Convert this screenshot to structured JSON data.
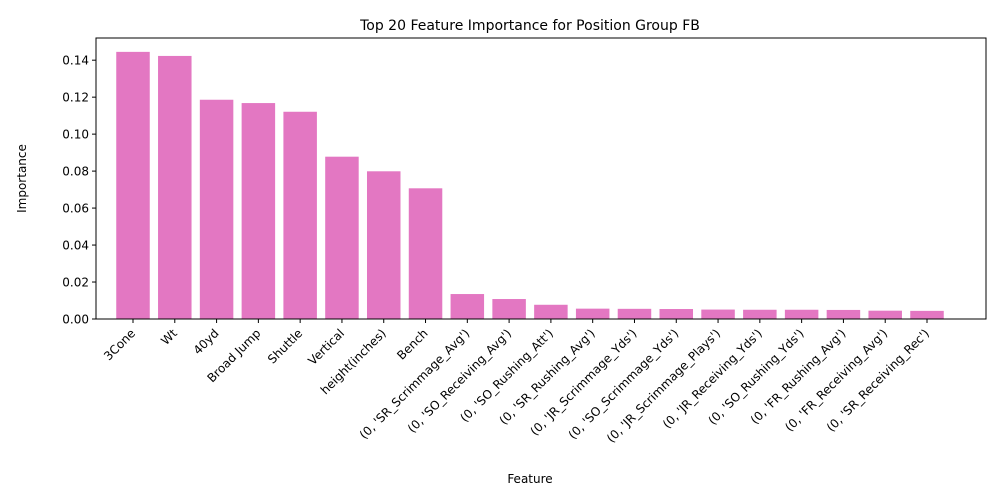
{
  "chart_data": {
    "type": "bar",
    "title": "Top 20 Feature Importance for Position Group FB",
    "xlabel": "Feature",
    "ylabel": "Importance",
    "ylim": [
      0,
      0.152
    ],
    "yticks": [
      "0.00",
      "0.02",
      "0.04",
      "0.06",
      "0.08",
      "0.10",
      "0.12",
      "0.14"
    ],
    "ytick_values": [
      0,
      0.02,
      0.04,
      0.06,
      0.08,
      0.1,
      0.12,
      0.14
    ],
    "grid": false,
    "legend": "none",
    "bar_color": "#e377c2",
    "categories": [
      "3Cone",
      "Wt",
      "40yd",
      "Broad Jump",
      "Shuttle",
      "Vertical",
      "height(inches)",
      "Bench",
      "(0, 'SR_Scrimmage_Avg')",
      "(0, 'SO_Receiving_Avg')",
      "(0, 'SO_Rushing_Att')",
      "(0, 'SR_Rushing_Avg')",
      "(0, 'JR_Scrimmage_Yds')",
      "(0, 'SO_Scrimmage_Yds')",
      "(0, 'JR_Scrimmage_Plays')",
      "(0, 'JR_Receiving_Yds')",
      "(0, 'SO_Rushing_Yds')",
      "(0, 'FR_Rushing_Avg')",
      "(0, 'FR_Receiving_Avg')",
      "(0, 'SR_Receiving_Rec')"
    ],
    "values": [
      0.1445,
      0.1423,
      0.1186,
      0.1168,
      0.1121,
      0.0878,
      0.0799,
      0.0707,
      0.0135,
      0.0108,
      0.0077,
      0.0056,
      0.0055,
      0.0054,
      0.0051,
      0.005,
      0.005,
      0.0049,
      0.0045,
      0.0044
    ]
  }
}
